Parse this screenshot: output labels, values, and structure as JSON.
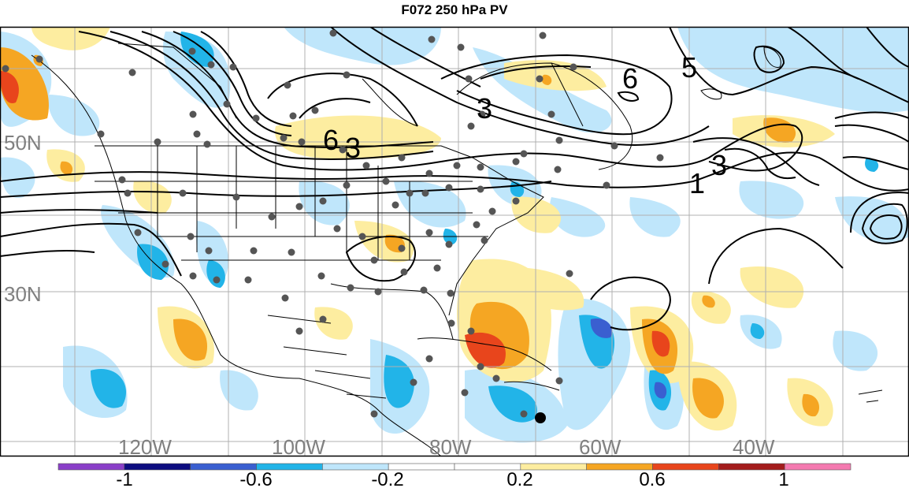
{
  "title": "F072 250 hPa PV",
  "lat_labels": [
    "50N",
    "30N"
  ],
  "lon_labels": [
    "120W",
    "100W",
    "80W",
    "60W",
    "40W"
  ],
  "contour_labels": [
    "6",
    "3",
    "5",
    "1",
    "3",
    "6",
    "3"
  ],
  "colorbar": {
    "labels": [
      "-1",
      "-0.6",
      "-0.2",
      "0.2",
      "0.6",
      "1"
    ],
    "colors": [
      "#8a3fc8",
      "#0d0d80",
      "#3a5fd0",
      "#22b4e8",
      "#bfe6fb",
      "#ffffff",
      "#ffffff",
      "#fdeda0",
      "#f5a623",
      "#e8451c",
      "#a31c1c",
      "#f47ab0"
    ]
  },
  "colors": {
    "light_blue": "#bfe6fb",
    "mid_blue": "#22b4e8",
    "dark_blue": "#3a5fd0",
    "light_yellow": "#fdeda0",
    "orange": "#f5a623",
    "red_orange": "#e8451c"
  }
}
